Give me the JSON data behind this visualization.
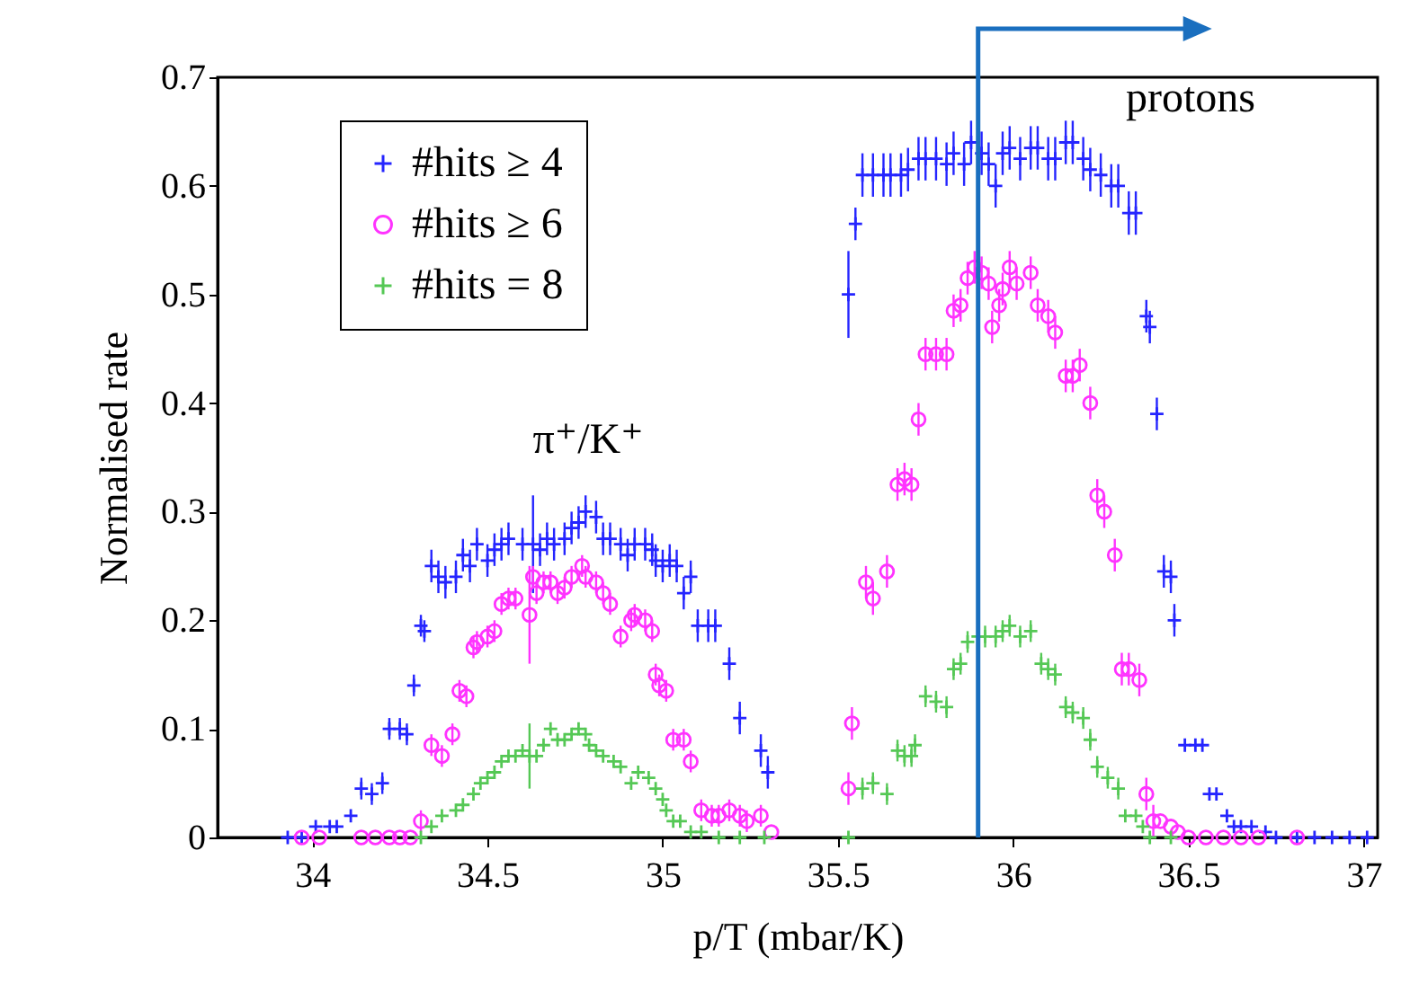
{
  "chart_data": {
    "type": "scatter",
    "xlabel": "p/T (mbar/K)",
    "ylabel": "Normalised rate",
    "xlim": [
      33.73,
      37.04
    ],
    "ylim": [
      0,
      0.7
    ],
    "xticks": [
      34,
      34.5,
      35,
      35.5,
      36,
      36.5,
      37
    ],
    "yticks": [
      0,
      0.1,
      0.2,
      0.3,
      0.4,
      0.5,
      0.6,
      0.7
    ],
    "legend": "top left",
    "annotations": [
      "π⁺/K⁺",
      "protons"
    ],
    "ref_lines": [
      {
        "axis": "x",
        "value": 35.9,
        "color": "#1a6fbf"
      }
    ],
    "series": [
      {
        "name": "#hits ≥ 4",
        "color": "#2525ff",
        "marker": "cross",
        "x": [
          33.93,
          33.97,
          34.01,
          34.05,
          34.07,
          34.11,
          34.14,
          34.17,
          34.2,
          34.22,
          34.25,
          34.27,
          34.29,
          34.31,
          34.32,
          34.34,
          34.36,
          34.38,
          34.41,
          34.43,
          34.45,
          34.47,
          34.5,
          34.52,
          34.54,
          34.56,
          34.6,
          34.63,
          34.65,
          34.67,
          34.69,
          34.72,
          34.74,
          34.76,
          34.78,
          34.81,
          34.83,
          34.85,
          34.88,
          34.9,
          34.92,
          34.95,
          34.97,
          34.98,
          35.0,
          35.02,
          35.04,
          35.06,
          35.08,
          35.1,
          35.13,
          35.15,
          35.19,
          35.22,
          35.28,
          35.3,
          35.53,
          35.55,
          35.57,
          35.6,
          35.63,
          35.65,
          35.68,
          35.7,
          35.73,
          35.75,
          35.78,
          35.81,
          35.83,
          35.86,
          35.88,
          35.91,
          35.93,
          35.95,
          35.97,
          35.99,
          36.02,
          36.05,
          36.07,
          36.1,
          36.12,
          36.15,
          36.17,
          36.2,
          36.22,
          36.25,
          36.28,
          36.3,
          36.33,
          36.35,
          36.38,
          36.39,
          36.41,
          36.43,
          36.45,
          36.46,
          36.49,
          36.52,
          36.54,
          36.56,
          36.58,
          36.61,
          36.63,
          36.65,
          36.68,
          36.72,
          36.75,
          36.81,
          36.86,
          36.91,
          36.96,
          37.01
        ],
        "values": [
          0,
          0,
          0.01,
          0.01,
          0.01,
          0.02,
          0.045,
          0.04,
          0.05,
          0.1,
          0.1,
          0.095,
          0.14,
          0.195,
          0.19,
          0.25,
          0.24,
          0.235,
          0.24,
          0.26,
          0.25,
          0.27,
          0.255,
          0.265,
          0.27,
          0.275,
          0.27,
          0.27,
          0.265,
          0.275,
          0.27,
          0.275,
          0.285,
          0.29,
          0.3,
          0.295,
          0.275,
          0.275,
          0.27,
          0.26,
          0.27,
          0.27,
          0.265,
          0.255,
          0.25,
          0.255,
          0.25,
          0.225,
          0.24,
          0.195,
          0.195,
          0.195,
          0.16,
          0.11,
          0.08,
          0.06,
          0.5,
          0.565,
          0.61,
          0.61,
          0.61,
          0.61,
          0.61,
          0.615,
          0.625,
          0.625,
          0.625,
          0.62,
          0.63,
          0.62,
          0.64,
          0.63,
          0.62,
          0.6,
          0.63,
          0.635,
          0.625,
          0.635,
          0.635,
          0.625,
          0.625,
          0.64,
          0.64,
          0.625,
          0.615,
          0.61,
          0.6,
          0.6,
          0.575,
          0.575,
          0.48,
          0.47,
          0.39,
          0.245,
          0.24,
          0.2,
          0.085,
          0.085,
          0.085,
          0.04,
          0.04,
          0.02,
          0.01,
          0.01,
          0.01,
          0.005,
          0,
          0,
          0,
          0,
          0,
          0
        ],
        "errors": [
          null,
          null,
          null,
          null,
          null,
          null,
          0.01,
          0.01,
          0.01,
          0.01,
          0.01,
          0.01,
          0.01,
          0.01,
          0.01,
          0.015,
          0.015,
          0.015,
          0.015,
          0.015,
          0.015,
          0.015,
          0.015,
          0.015,
          0.015,
          0.015,
          0.015,
          0.045,
          0.015,
          0.015,
          0.015,
          0.015,
          0.015,
          0.015,
          0.015,
          0.015,
          0.015,
          0.015,
          0.015,
          0.015,
          0.015,
          0.015,
          0.015,
          0.015,
          0.015,
          0.015,
          0.015,
          0.015,
          0.015,
          0.015,
          0.015,
          0.015,
          0.015,
          0.015,
          0.015,
          0.015,
          0.04,
          0.015,
          0.02,
          0.02,
          0.02,
          0.02,
          0.02,
          0.02,
          0.02,
          0.02,
          0.02,
          0.02,
          0.02,
          0.02,
          0.02,
          0.02,
          0.02,
          0.02,
          0.02,
          0.02,
          0.02,
          0.02,
          0.02,
          0.02,
          0.02,
          0.02,
          0.02,
          0.02,
          0.02,
          0.02,
          0.02,
          0.02,
          0.02,
          0.02,
          0.015,
          0.015,
          0.015,
          0.015,
          0.015,
          0.015,
          null,
          null,
          null,
          null,
          null,
          null,
          null,
          null,
          null,
          null,
          null,
          null,
          null,
          null,
          null,
          null
        ]
      },
      {
        "name": "#hits ≥ 6",
        "color": "#ff33ff",
        "marker": "circle",
        "x": [
          33.97,
          34.02,
          34.14,
          34.18,
          34.22,
          34.25,
          34.28,
          34.31,
          34.34,
          34.37,
          34.4,
          34.42,
          34.44,
          34.46,
          34.47,
          34.5,
          34.52,
          34.54,
          34.56,
          34.58,
          34.62,
          34.63,
          34.64,
          34.66,
          34.68,
          34.7,
          34.72,
          34.74,
          34.77,
          34.78,
          34.81,
          34.83,
          34.85,
          34.88,
          34.91,
          34.92,
          34.95,
          34.97,
          34.98,
          34.99,
          35.01,
          35.03,
          35.06,
          35.08,
          35.11,
          35.14,
          35.16,
          35.19,
          35.22,
          35.24,
          35.28,
          35.31,
          35.53,
          35.54,
          35.58,
          35.6,
          35.64,
          35.67,
          35.69,
          35.71,
          35.73,
          35.75,
          35.78,
          35.81,
          35.83,
          35.85,
          35.87,
          35.89,
          35.91,
          35.93,
          35.94,
          35.96,
          35.97,
          35.99,
          36.01,
          36.05,
          36.07,
          36.1,
          36.12,
          36.15,
          36.17,
          36.19,
          36.22,
          36.24,
          36.26,
          36.29,
          36.31,
          36.33,
          36.36,
          36.38,
          36.4,
          36.42,
          36.45,
          36.47,
          36.5,
          36.55,
          36.6,
          36.65,
          36.7,
          36.81
        ],
        "values": [
          0,
          0,
          0,
          0,
          0,
          0,
          0,
          0.015,
          0.085,
          0.075,
          0.095,
          0.135,
          0.13,
          0.175,
          0.18,
          0.185,
          0.19,
          0.215,
          0.22,
          0.22,
          0.205,
          0.24,
          0.225,
          0.235,
          0.235,
          0.225,
          0.23,
          0.24,
          0.25,
          0.24,
          0.235,
          0.225,
          0.215,
          0.185,
          0.2,
          0.205,
          0.2,
          0.19,
          0.15,
          0.14,
          0.135,
          0.09,
          0.09,
          0.07,
          0.025,
          0.02,
          0.02,
          0.025,
          0.02,
          0.015,
          0.02,
          0.005,
          0.045,
          0.105,
          0.235,
          0.22,
          0.245,
          0.325,
          0.33,
          0.325,
          0.385,
          0.445,
          0.445,
          0.445,
          0.485,
          0.49,
          0.515,
          0.525,
          0.52,
          0.51,
          0.47,
          0.49,
          0.505,
          0.525,
          0.51,
          0.52,
          0.49,
          0.48,
          0.465,
          0.425,
          0.425,
          0.435,
          0.4,
          0.315,
          0.3,
          0.26,
          0.155,
          0.155,
          0.145,
          0.04,
          0.015,
          0.015,
          0.01,
          0.005,
          0,
          0,
          0,
          0,
          0,
          0
        ],
        "errors": [
          null,
          null,
          null,
          null,
          null,
          null,
          null,
          0.01,
          0.01,
          0.01,
          0.01,
          0.01,
          0.01,
          0.01,
          0.01,
          0.01,
          0.01,
          0.01,
          0.01,
          0.01,
          0.045,
          0.01,
          0.01,
          0.01,
          0.01,
          0.01,
          0.01,
          0.01,
          0.01,
          0.01,
          0.01,
          0.01,
          0.01,
          0.01,
          0.01,
          0.01,
          0.01,
          0.01,
          0.01,
          0.01,
          0.01,
          0.01,
          0.01,
          0.01,
          0.01,
          0.01,
          0.01,
          0.01,
          0.01,
          0.01,
          0.01,
          null,
          0.015,
          0.015,
          0.015,
          0.015,
          0.015,
          0.015,
          0.015,
          0.015,
          0.015,
          0.015,
          0.015,
          0.015,
          0.015,
          0.015,
          0.015,
          0.015,
          0.015,
          0.015,
          0.015,
          0.015,
          0.015,
          0.015,
          0.015,
          0.015,
          0.015,
          0.015,
          0.015,
          0.015,
          0.015,
          0.015,
          0.015,
          0.015,
          0.015,
          0.015,
          0.015,
          0.015,
          0.015,
          0.015,
          0.015,
          null,
          null,
          null,
          null,
          null,
          null,
          null,
          null,
          null
        ]
      },
      {
        "name": "#hits = 8",
        "color": "#55c855",
        "marker": "cross",
        "x": [
          34.31,
          34.34,
          34.37,
          34.41,
          34.43,
          34.46,
          34.48,
          34.5,
          34.52,
          34.54,
          34.56,
          34.58,
          34.6,
          34.62,
          34.64,
          34.66,
          34.68,
          34.7,
          34.72,
          34.74,
          34.76,
          34.78,
          34.79,
          34.81,
          34.83,
          34.86,
          34.88,
          34.91,
          34.93,
          34.96,
          34.98,
          35.0,
          35.01,
          35.03,
          35.05,
          35.08,
          35.11,
          35.16,
          35.22,
          35.29,
          35.53,
          35.57,
          35.6,
          35.64,
          35.67,
          35.69,
          35.71,
          35.72,
          35.75,
          35.78,
          35.81,
          35.83,
          35.85,
          35.87,
          35.9,
          35.92,
          35.95,
          35.97,
          35.99,
          36.02,
          36.05,
          36.08,
          36.1,
          36.12,
          36.15,
          36.17,
          36.2,
          36.22,
          36.24,
          36.27,
          36.3,
          36.32,
          36.35,
          36.37,
          36.39,
          36.45
        ],
        "values": [
          0,
          0.01,
          0.02,
          0.025,
          0.03,
          0.04,
          0.05,
          0.055,
          0.06,
          0.07,
          0.075,
          0.075,
          0.08,
          0.075,
          0.075,
          0.085,
          0.1,
          0.09,
          0.09,
          0.095,
          0.1,
          0.095,
          0.085,
          0.08,
          0.075,
          0.07,
          0.065,
          0.05,
          0.06,
          0.055,
          0.045,
          0.035,
          0.025,
          0.015,
          0.015,
          0.005,
          0.005,
          0,
          0,
          0,
          0,
          0.045,
          0.05,
          0.04,
          0.08,
          0.075,
          0.075,
          0.085,
          0.13,
          0.125,
          0.12,
          0.155,
          0.16,
          0.18,
          0.185,
          0.185,
          0.185,
          0.19,
          0.195,
          0.185,
          0.19,
          0.16,
          0.155,
          0.15,
          0.12,
          0.115,
          0.11,
          0.09,
          0.065,
          0.055,
          0.045,
          0.02,
          0.02,
          0.01,
          0,
          0
        ],
        "errors": [
          null,
          null,
          null,
          null,
          null,
          null,
          null,
          null,
          null,
          null,
          null,
          null,
          null,
          0.03,
          null,
          null,
          null,
          null,
          null,
          null,
          null,
          null,
          null,
          null,
          null,
          null,
          null,
          null,
          null,
          null,
          null,
          null,
          null,
          null,
          null,
          null,
          null,
          null,
          null,
          null,
          null,
          0.01,
          0.01,
          0.01,
          0.01,
          0.01,
          0.01,
          0.01,
          0.01,
          0.01,
          0.01,
          0.01,
          0.01,
          0.01,
          null,
          0.01,
          0.01,
          0.01,
          0.01,
          0.01,
          0.01,
          0.01,
          0.01,
          0.01,
          0.01,
          0.01,
          0.01,
          0.01,
          0.01,
          0.01,
          0.01,
          null,
          null,
          null,
          null,
          null
        ]
      }
    ]
  }
}
